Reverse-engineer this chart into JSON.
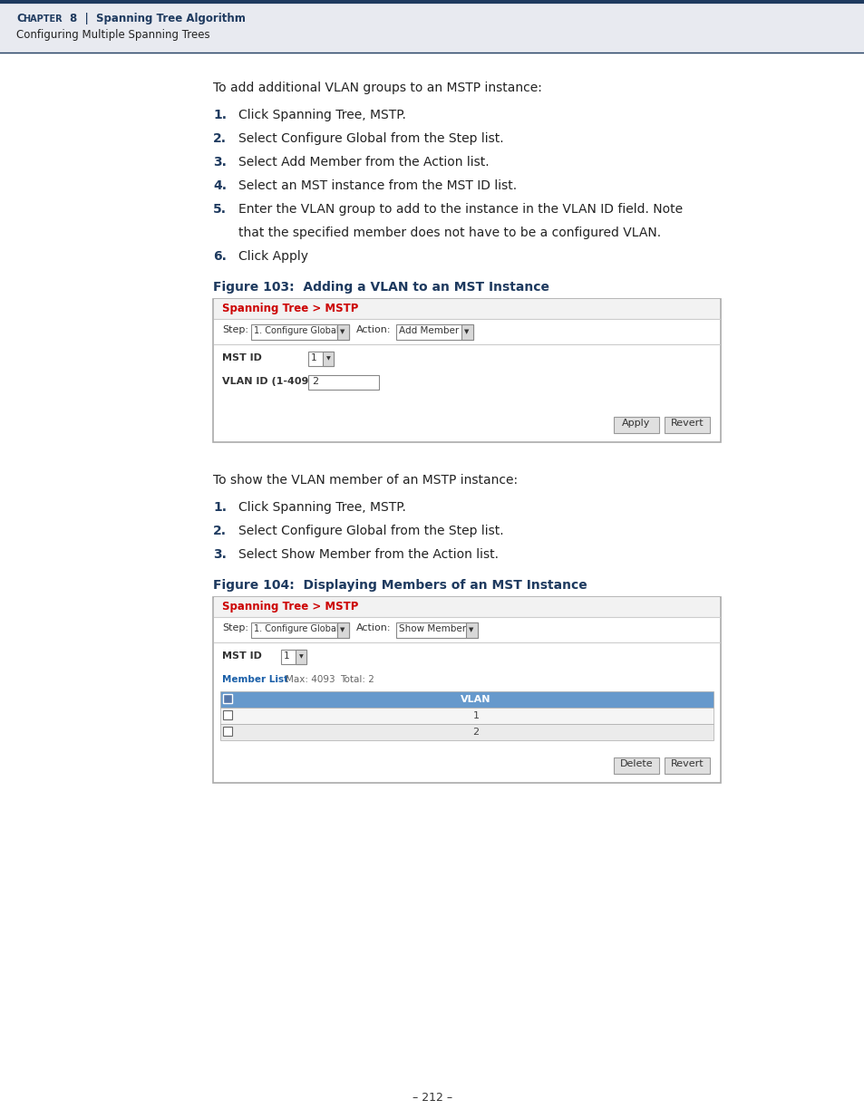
{
  "page_bg": "#ffffff",
  "header_bg": "#e8eaf0",
  "header_border_color": "#1e3a5f",
  "header_chapter": "C",
  "header_chapter2": "HAPTER",
  "header_full": "CHAPTER 8  |  Spanning Tree Algorithm",
  "header_sub": "Configuring Multiple Spanning Trees",
  "header_text_color": "#1e3a5f",
  "header_sub_color": "#222222",
  "body_text_color": "#222222",
  "num_color": "#1e3a5f",
  "intro_text1": "To add additional VLAN groups to an MSTP instance:",
  "steps1": [
    {
      "num": "1.",
      "text": "Click Spanning Tree, MSTP."
    },
    {
      "num": "2.",
      "text": "Select Configure Global from the Step list."
    },
    {
      "num": "3.",
      "text": "Select Add Member from the Action list."
    },
    {
      "num": "4.",
      "text": "Select an MST instance from the MST ID list."
    },
    {
      "num": "5.",
      "text": "Enter the VLAN group to add to the instance in the VLAN ID field. Note"
    },
    {
      "num": "",
      "text": "that the specified member does not have to be a configured VLAN."
    },
    {
      "num": "6.",
      "text": "Click Apply"
    }
  ],
  "fig103_title": "Figure 103:  Adding a VLAN to an MST Instance",
  "fig104_title": "Figure 104:  Displaying Members of an MST Instance",
  "fig_title_color": "#1e3a5f",
  "intro_text2": "To show the VLAN member of an MSTP instance:",
  "steps2": [
    {
      "num": "1.",
      "text": "Click Spanning Tree, MSTP."
    },
    {
      "num": "2.",
      "text": "Select Configure Global from the Step list."
    },
    {
      "num": "3.",
      "text": "Select Show Member from the Action list."
    }
  ],
  "panel_border": "#aaaaaa",
  "panel_bg": "#ffffff",
  "panel_hdr_bg": "#f2f2f2",
  "panel_hdr_sep": "#cccccc",
  "panel_title_color": "#cc0000",
  "panel_title": "Spanning Tree > MSTP",
  "page_num": "– 212 –",
  "tbl_hdr_bg": "#6699cc",
  "tbl_row1_bg": "#f5f5f5",
  "tbl_row2_bg": "#ebebeb",
  "tbl_border": "#aaaaaa",
  "btn_bg": "#e0e0e0",
  "btn_border": "#999999"
}
